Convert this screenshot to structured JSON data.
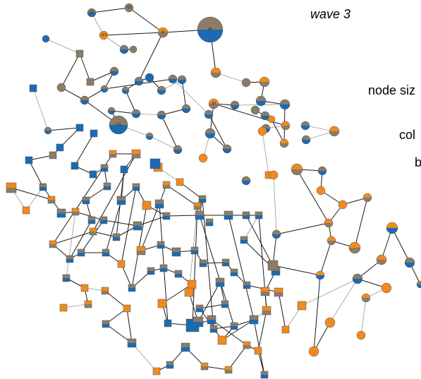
{
  "title": "wave 3",
  "legend": [
    "node siz",
    "col",
    "b"
  ],
  "colors": {
    "blue": "#1b6bb3",
    "orange": "#f08a1e",
    "gray": "#8c7c66",
    "edge_dark": "#1a1a1a",
    "edge_light": "#9a9a9a"
  },
  "nodes": [
    {
      "id": "n0",
      "label": "50",
      "shape": "circle",
      "fill": "split-gray-blue"
    },
    {
      "id": "n1",
      "label": "62",
      "shape": "circle",
      "fill": "gray"
    },
    {
      "id": "n2",
      "label": "",
      "shape": "circle",
      "fill": "blue"
    },
    {
      "id": "n3",
      "label": "119",
      "shape": "circle",
      "fill": "orange"
    },
    {
      "id": "n4",
      "label": "",
      "shape": "circle",
      "fill": "split-gray-blue"
    },
    {
      "id": "n5",
      "label": "",
      "shape": "circle",
      "fill": "gray"
    },
    {
      "id": "n6",
      "label": "43",
      "shape": "circle",
      "fill": "split-orange-gray"
    },
    {
      "id": "n7",
      "label": "86",
      "shape": "circle",
      "fill": "split-gray-blue"
    },
    {
      "id": "n8",
      "label": "",
      "shape": "square",
      "fill": "gray"
    },
    {
      "id": "n9",
      "label": "",
      "shape": "square",
      "fill": "blue"
    },
    {
      "id": "n10",
      "label": "",
      "shape": "circle",
      "fill": "gray"
    },
    {
      "id": "n11",
      "label": "",
      "shape": "square",
      "fill": "gray"
    },
    {
      "id": "n12",
      "label": "",
      "shape": "circle",
      "fill": "split-gray-blue"
    },
    {
      "id": "n13",
      "label": "",
      "shape": "circle",
      "fill": "split-gray-blue"
    },
    {
      "id": "n14",
      "label": "",
      "shape": "circle",
      "fill": "split-gray-blue"
    },
    {
      "id": "n15",
      "label": "",
      "shape": "circle",
      "fill": "split-gray-blue"
    },
    {
      "id": "n16",
      "label": "",
      "shape": "circle",
      "fill": "split-gray-blue"
    },
    {
      "id": "n17",
      "label": "",
      "shape": "circle",
      "fill": "blue"
    },
    {
      "id": "n18",
      "label": "",
      "shape": "circle",
      "fill": "split-gray-blue"
    },
    {
      "id": "n19",
      "label": "",
      "shape": "circle",
      "fill": "split-gray-blue"
    },
    {
      "id": "n20",
      "label": "",
      "shape": "circle",
      "fill": "split-gray-blue"
    },
    {
      "id": "n21",
      "label": "",
      "shape": "circle",
      "fill": "split-gray-blue"
    },
    {
      "id": "n22",
      "label": "",
      "shape": "circle",
      "fill": "split-gray-blue"
    },
    {
      "id": "n23",
      "label": "111",
      "shape": "circle",
      "fill": "split-gray-blue"
    },
    {
      "id": "n24",
      "label": "",
      "shape": "circle",
      "fill": "split-gray-blue"
    },
    {
      "id": "n25",
      "label": "",
      "shape": "circle",
      "fill": "split-gray-blue"
    },
    {
      "id": "n26",
      "label": "",
      "shape": "circle",
      "fill": "split-gray-blue"
    },
    {
      "id": "n27",
      "label": "",
      "shape": "circle",
      "fill": "split-gray-blue"
    },
    {
      "id": "n28",
      "label": "",
      "shape": "circle",
      "fill": "split-gray-blue"
    },
    {
      "id": "n29",
      "label": "",
      "shape": "circle",
      "fill": "split-orange-gray"
    },
    {
      "id": "n30",
      "label": "",
      "shape": "circle",
      "fill": "split-orange-gray"
    },
    {
      "id": "n31",
      "label": "",
      "shape": "circle",
      "fill": "gray"
    },
    {
      "id": "n32",
      "label": "",
      "shape": "circle",
      "fill": "split-gray-blue"
    },
    {
      "id": "n33",
      "label": "",
      "shape": "circle",
      "fill": "split-gray-blue"
    },
    {
      "id": "n34",
      "label": "99",
      "shape": "circle",
      "fill": "split-orange-gray"
    },
    {
      "id": "n35",
      "label": "",
      "shape": "circle",
      "fill": "split-gray-blue"
    },
    {
      "id": "n36",
      "label": "",
      "shape": "circle",
      "fill": "split-gray-blue"
    },
    {
      "id": "n37",
      "label": "",
      "shape": "circle",
      "fill": "gray"
    },
    {
      "id": "n38",
      "label": "",
      "shape": "circle",
      "fill": "split-gray-blue"
    },
    {
      "id": "n39",
      "label": "",
      "shape": "circle",
      "fill": "orange"
    },
    {
      "id": "n40",
      "label": "",
      "shape": "circle",
      "fill": "split-orange-gray"
    },
    {
      "id": "n41",
      "label": "",
      "shape": "circle",
      "fill": "split-orange-gray"
    },
    {
      "id": "n42",
      "label": "",
      "shape": "circle",
      "fill": "split-gray-blue"
    },
    {
      "id": "n43",
      "label": "",
      "shape": "circle",
      "fill": "split-gray-blue"
    },
    {
      "id": "n44",
      "label": "",
      "shape": "circle",
      "fill": "orange"
    },
    {
      "id": "n45",
      "label": "",
      "shape": "circle",
      "fill": "orange"
    },
    {
      "id": "n46",
      "label": "",
      "shape": "square",
      "fill": "orange"
    },
    {
      "id": "n47",
      "label": "",
      "shape": "circle",
      "fill": "split-gray-blue"
    },
    {
      "id": "n48",
      "label": "",
      "shape": "circle",
      "fill": "split-orange-gray"
    },
    {
      "id": "n49",
      "label": "",
      "shape": "circle",
      "fill": "split-gray-blue"
    },
    {
      "id": "n50",
      "label": "",
      "shape": "circle",
      "fill": "split-gray-blue"
    },
    {
      "id": "n51",
      "label": "",
      "shape": "square",
      "fill": "blue"
    },
    {
      "id": "n52",
      "label": "",
      "shape": "square",
      "fill": "blue"
    },
    {
      "id": "n53",
      "label": "",
      "shape": "square",
      "fill": "blue"
    },
    {
      "id": "n54",
      "label": "",
      "shape": "square",
      "fill": "blue"
    },
    {
      "id": "n55",
      "label": "",
      "shape": "square",
      "fill": "gray"
    },
    {
      "id": "n56",
      "label": "",
      "shape": "square",
      "fill": "blue"
    },
    {
      "id": "n57",
      "label": "",
      "shape": "square",
      "fill": "split-orange-gray"
    },
    {
      "id": "n58",
      "label": "",
      "shape": "square",
      "fill": "split-orange-gray"
    },
    {
      "id": "n59",
      "label": "",
      "shape": "square",
      "fill": "orange"
    },
    {
      "id": "n60",
      "label": "",
      "shape": "square",
      "fill": "blue"
    },
    {
      "id": "n61",
      "label": "",
      "shape": "square",
      "fill": "split-gray-blue"
    },
    {
      "id": "n62",
      "label": "",
      "shape": "square",
      "fill": "blue"
    },
    {
      "id": "n63",
      "label": "",
      "shape": "square",
      "fill": "split-gray-blue"
    },
    {
      "id": "n64",
      "label": "",
      "shape": "square",
      "fill": "orange"
    },
    {
      "id": "n65",
      "label": "",
      "shape": "square",
      "fill": "orange"
    },
    {
      "id": "n66",
      "label": "",
      "shape": "square",
      "fill": "split-gray-blue"
    },
    {
      "id": "n67",
      "label": "",
      "shape": "square",
      "fill": "split-gray-blue"
    },
    {
      "id": "n68",
      "label": "",
      "shape": "square",
      "fill": "split-gray-blue"
    },
    {
      "id": "n69",
      "label": "",
      "shape": "square",
      "fill": "split-gray-blue"
    },
    {
      "id": "n70",
      "label": "",
      "shape": "square",
      "fill": "split-gray-blue"
    },
    {
      "id": "n71",
      "label": "",
      "shape": "square",
      "fill": "split-orange-gray"
    },
    {
      "id": "n72",
      "label": "",
      "shape": "square",
      "fill": "orange"
    },
    {
      "id": "n73",
      "label": "",
      "shape": "square",
      "fill": "split-orange-gray"
    },
    {
      "id": "n74",
      "label": "",
      "shape": "square",
      "fill": "split-orange-gray"
    },
    {
      "id": "n75",
      "label": "",
      "shape": "square",
      "fill": "split-gray-blue"
    },
    {
      "id": "n76",
      "label": "",
      "shape": "square",
      "fill": "split-gray-blue"
    },
    {
      "id": "n77",
      "label": "",
      "shape": "square",
      "fill": "split-gray-blue"
    },
    {
      "id": "n78",
      "label": "",
      "shape": "square",
      "fill": "split-gray-blue"
    },
    {
      "id": "n79",
      "label": "",
      "shape": "square",
      "fill": "split-gray-blue"
    },
    {
      "id": "n80",
      "label": "",
      "shape": "square",
      "fill": "split-gray-blue"
    },
    {
      "id": "n81",
      "label": "",
      "shape": "square",
      "fill": "split-gray-blue"
    },
    {
      "id": "n82",
      "label": "",
      "shape": "square",
      "fill": "split-gray-blue"
    },
    {
      "id": "n83",
      "label": "",
      "shape": "square",
      "fill": "split-gray-blue"
    },
    {
      "id": "n84",
      "label": "",
      "shape": "square",
      "fill": "split-gray-blue"
    },
    {
      "id": "n85",
      "label": "",
      "shape": "square",
      "fill": "split-gray-blue"
    },
    {
      "id": "n86",
      "label": "",
      "shape": "square",
      "fill": "split-orange-gray"
    },
    {
      "id": "n87",
      "label": "",
      "shape": "square",
      "fill": "split-orange-gray"
    },
    {
      "id": "n88",
      "label": "",
      "shape": "square",
      "fill": "split-gray-blue"
    },
    {
      "id": "n89",
      "label": "",
      "shape": "square",
      "fill": "split-gray-blue"
    },
    {
      "id": "n90",
      "label": "",
      "shape": "square",
      "fill": "split-gray-blue"
    },
    {
      "id": "n91",
      "label": "",
      "shape": "square",
      "fill": "orange"
    },
    {
      "id": "n92",
      "label": "",
      "shape": "square",
      "fill": "split-orange-gray"
    },
    {
      "id": "n93",
      "label": "",
      "shape": "square",
      "fill": "split-gray-blue"
    },
    {
      "id": "n94",
      "label": "",
      "shape": "square",
      "fill": "split-gray-blue"
    },
    {
      "id": "n95",
      "label": "",
      "shape": "square",
      "fill": "split-gray-blue"
    },
    {
      "id": "n96",
      "label": "",
      "shape": "square",
      "fill": "split-gray-blue"
    },
    {
      "id": "n97",
      "label": "",
      "shape": "square",
      "fill": "split-gray-blue"
    },
    {
      "id": "n98",
      "label": "",
      "shape": "square",
      "fill": "split-gray-blue"
    },
    {
      "id": "n99",
      "label": "",
      "shape": "square",
      "fill": "split-gray-blue"
    },
    {
      "id": "n100",
      "label": "",
      "shape": "square",
      "fill": "split-gray-blue"
    },
    {
      "id": "n101",
      "label": "",
      "shape": "square",
      "fill": "split-gray-blue"
    },
    {
      "id": "n102",
      "label": "",
      "shape": "square",
      "fill": "orange"
    },
    {
      "id": "n103",
      "label": "",
      "shape": "square",
      "fill": "split-gray-blue"
    },
    {
      "id": "n104",
      "label": "",
      "shape": "square",
      "fill": "split-gray-blue"
    },
    {
      "id": "n105",
      "label": "",
      "shape": "square",
      "fill": "split-gray-blue"
    },
    {
      "id": "n106",
      "label": "",
      "shape": "square",
      "fill": "split-gray-blue"
    },
    {
      "id": "n107",
      "label": "",
      "shape": "square",
      "fill": "split-orange-gray"
    },
    {
      "id": "n108",
      "label": "",
      "shape": "square",
      "fill": "split-orange-gray"
    },
    {
      "id": "n109",
      "label": "",
      "shape": "square",
      "fill": "split-gray-blue"
    },
    {
      "id": "n110",
      "label": "",
      "shape": "square",
      "fill": "orange"
    },
    {
      "id": "n111",
      "label": "",
      "shape": "square",
      "fill": "split-orange-gray"
    },
    {
      "id": "n112",
      "label": "",
      "shape": "square",
      "fill": "split-orange-gray"
    },
    {
      "id": "n113",
      "label": "",
      "shape": "square",
      "fill": "orange"
    },
    {
      "id": "n114",
      "label": "",
      "shape": "square",
      "fill": "orange"
    },
    {
      "id": "n115",
      "label": "",
      "shape": "square",
      "fill": "orange"
    },
    {
      "id": "n116",
      "label": "",
      "shape": "square",
      "fill": "orange"
    },
    {
      "id": "n117",
      "label": "",
      "shape": "square",
      "fill": "split-gray-blue"
    },
    {
      "id": "n118",
      "label": "",
      "shape": "square",
      "fill": "blue"
    },
    {
      "id": "n119",
      "label": "",
      "shape": "square",
      "fill": "blue"
    },
    {
      "id": "n120",
      "label": "",
      "shape": "square",
      "fill": "split-gray-blue"
    },
    {
      "id": "n121",
      "label": "",
      "shape": "square",
      "fill": "split-gray-blue"
    },
    {
      "id": "n122",
      "label": "",
      "shape": "square",
      "fill": "split-gray-blue"
    },
    {
      "id": "n123",
      "label": "",
      "shape": "square",
      "fill": "split-gray-blue"
    },
    {
      "id": "n124",
      "label": "",
      "shape": "square",
      "fill": "split-gray-blue"
    },
    {
      "id": "n125",
      "label": "",
      "shape": "square",
      "fill": "split-gray-blue"
    },
    {
      "id": "n126",
      "label": "",
      "shape": "square",
      "fill": "split-orange-gray"
    },
    {
      "id": "n127",
      "label": "",
      "shape": "square",
      "fill": "split-orange-gray"
    },
    {
      "id": "n128",
      "label": "",
      "shape": "square",
      "fill": "orange"
    },
    {
      "id": "n129",
      "label": "",
      "shape": "square",
      "fill": "split-gray-blue"
    },
    {
      "id": "n130",
      "label": "",
      "shape": "square",
      "fill": "split-gray-blue"
    },
    {
      "id": "n131",
      "label": "",
      "shape": "square",
      "fill": "split-gray-blue"
    },
    {
      "id": "n132",
      "label": "",
      "shape": "square",
      "fill": "orange"
    },
    {
      "id": "n133",
      "label": "",
      "shape": "square",
      "fill": "split-orange-gray"
    },
    {
      "id": "n134",
      "label": "",
      "shape": "square",
      "fill": "split-orange-gray"
    },
    {
      "id": "n135",
      "label": "",
      "shape": "square",
      "fill": "orange"
    },
    {
      "id": "n136",
      "label": "",
      "shape": "square",
      "fill": "orange"
    },
    {
      "id": "n137",
      "label": "",
      "shape": "square",
      "fill": "split-gray-blue"
    },
    {
      "id": "n138",
      "label": "",
      "shape": "square",
      "fill": "orange"
    },
    {
      "id": "n139",
      "label": "",
      "shape": "square",
      "fill": "blue"
    },
    {
      "id": "n140",
      "label": "",
      "shape": "square",
      "fill": "split-gray-blue"
    },
    {
      "id": "n141",
      "label": "",
      "shape": "square",
      "fill": "split-gray-blue"
    },
    {
      "id": "n142",
      "label": "",
      "shape": "square",
      "fill": "split-orange-gray"
    },
    {
      "id": "n143",
      "label": "",
      "shape": "square",
      "fill": "split-orange-gray"
    },
    {
      "id": "n144",
      "label": "",
      "shape": "circle",
      "fill": "split-orange-gray"
    },
    {
      "id": "n145",
      "label": "",
      "shape": "circle",
      "fill": "split-gray-blue"
    },
    {
      "id": "n146",
      "label": "",
      "shape": "circle",
      "fill": "orange"
    },
    {
      "id": "n147",
      "label": "",
      "shape": "circle",
      "fill": "orange"
    },
    {
      "id": "n148",
      "label": "",
      "shape": "circle",
      "fill": "split-orange-gray"
    },
    {
      "id": "n149",
      "label": "",
      "shape": "circle",
      "fill": "split-orange-gray"
    },
    {
      "id": "n150",
      "label": "",
      "shape": "circle",
      "fill": "split-gray-blue"
    },
    {
      "id": "n151",
      "label": "",
      "shape": "circle",
      "fill": "split-orange-gray"
    },
    {
      "id": "n152",
      "label": "",
      "shape": "circle",
      "fill": "split-orange-gray"
    },
    {
      "id": "n153",
      "label": "",
      "shape": "circle",
      "fill": "split-orange-gray"
    },
    {
      "id": "n154",
      "label": "",
      "shape": "circle",
      "fill": "split-orange-blue"
    },
    {
      "id": "n155",
      "label": "",
      "shape": "circle",
      "fill": "split-gray-blue"
    },
    {
      "id": "n156",
      "label": "",
      "shape": "circle",
      "fill": "split-gray-blue"
    },
    {
      "id": "n157",
      "label": "",
      "shape": "circle",
      "fill": "orange"
    },
    {
      "id": "n158",
      "label": "",
      "shape": "circle",
      "fill": "split-orange-gray"
    },
    {
      "id": "n159",
      "label": "",
      "shape": "circle",
      "fill": "split-gray-blue"
    },
    {
      "id": "n160",
      "label": "",
      "shape": "circle",
      "fill": "orange"
    },
    {
      "id": "n161",
      "label": "",
      "shape": "circle",
      "fill": "orange"
    },
    {
      "id": "n162",
      "label": "",
      "shape": "circle",
      "fill": "orange"
    },
    {
      "id": "n163",
      "label": "",
      "shape": "circle",
      "fill": "split-orange-blue"
    },
    {
      "id": "n164",
      "label": "",
      "shape": "circle",
      "fill": "split-gray-blue"
    },
    {
      "id": "n165",
      "label": "",
      "shape": "circle",
      "fill": "orange"
    },
    {
      "id": "n166",
      "label": "",
      "shape": "square",
      "fill": "gray"
    },
    {
      "id": "n167",
      "label": "",
      "shape": "square",
      "fill": "split-gray-blue"
    }
  ]
}
